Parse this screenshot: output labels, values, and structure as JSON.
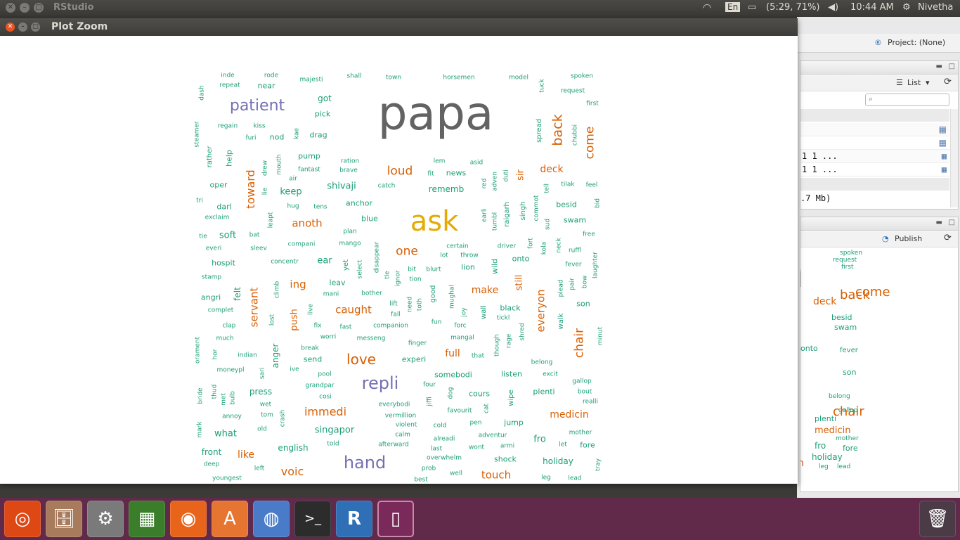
{
  "top_panel": {
    "app_title": "RStudio",
    "keyboard": "En",
    "battery": "(5:29, 71%)",
    "clock": "10:44 AM",
    "user": "Nivetha"
  },
  "plot_zoom": {
    "title": "Plot Zoom"
  },
  "rstudio": {
    "project": "Project: (None)",
    "list_label": "List",
    "env_rows": [
      "1 1 ...",
      "1 1 ..."
    ],
    "memory": ".7 Mb)",
    "publish_label": "Publish"
  },
  "wordcloud": [
    {
      "t": "papa",
      "c": "#636363"
    },
    {
      "t": "ask",
      "c": "#e6ab02"
    },
    {
      "t": "patient",
      "c": "#7570b3"
    },
    {
      "t": "repli",
      "c": "#7570b3"
    },
    {
      "t": "hand",
      "c": "#7570b3"
    },
    {
      "t": "love",
      "c": "#d95f02"
    },
    {
      "t": "loud",
      "c": "#d95f02"
    },
    {
      "t": "one",
      "c": "#d95f02"
    },
    {
      "t": "back",
      "c": "#d95f02"
    },
    {
      "t": "come",
      "c": "#d95f02"
    },
    {
      "t": "toward",
      "c": "#d95f02"
    },
    {
      "t": "chair",
      "c": "#d95f02"
    },
    {
      "t": "everyon",
      "c": "#d95f02"
    },
    {
      "t": "servant",
      "c": "#d95f02"
    },
    {
      "t": "anoth",
      "c": "#d95f02"
    },
    {
      "t": "immedi",
      "c": "#d95f02"
    },
    {
      "t": "medicin",
      "c": "#d95f02"
    },
    {
      "t": "caught",
      "c": "#d95f02"
    },
    {
      "t": "make",
      "c": "#d95f02"
    },
    {
      "t": "deck",
      "c": "#d95f02"
    },
    {
      "t": "touch",
      "c": "#d95f02"
    },
    {
      "t": "voic",
      "c": "#d95f02"
    },
    {
      "t": "ing",
      "c": "#d95f02"
    },
    {
      "t": "full",
      "c": "#d95f02"
    },
    {
      "t": "like",
      "c": "#d95f02"
    },
    {
      "t": "push",
      "c": "#d95f02"
    },
    {
      "t": "sir",
      "c": "#d95f02"
    },
    {
      "t": "still",
      "c": "#d95f02"
    },
    {
      "t": "singapor",
      "c": "#1b9e77"
    },
    {
      "t": "shivaji",
      "c": "#1b9e77"
    },
    {
      "t": "keep",
      "c": "#1b9e77"
    },
    {
      "t": "rememb",
      "c": "#1b9e77"
    },
    {
      "t": "anger",
      "c": "#1b9e77"
    },
    {
      "t": "felt",
      "c": "#1b9e77"
    },
    {
      "t": "holiday",
      "c": "#1b9e77"
    },
    {
      "t": "english",
      "c": "#1b9e77"
    },
    {
      "t": "press",
      "c": "#1b9e77"
    },
    {
      "t": "ear",
      "c": "#1b9e77"
    },
    {
      "t": "swam",
      "c": "#1b9e77"
    },
    {
      "t": "besid",
      "c": "#1b9e77"
    },
    {
      "t": "soft",
      "c": "#1b9e77"
    },
    {
      "t": "angri",
      "c": "#1b9e77"
    },
    {
      "t": "what",
      "c": "#1b9e77"
    },
    {
      "t": "front",
      "c": "#1b9e77"
    },
    {
      "t": "fro",
      "c": "#1b9e77"
    },
    {
      "t": "fore",
      "c": "#1b9e77"
    },
    {
      "t": "shock",
      "c": "#1b9e77"
    },
    {
      "t": "plenti",
      "c": "#1b9e77"
    },
    {
      "t": "cours",
      "c": "#1b9e77"
    },
    {
      "t": "somebodi",
      "c": "#1b9e77"
    },
    {
      "t": "listen",
      "c": "#1b9e77"
    },
    {
      "t": "black",
      "c": "#1b9e77"
    },
    {
      "t": "son",
      "c": "#1b9e77"
    },
    {
      "t": "onto",
      "c": "#1b9e77"
    },
    {
      "t": "lion",
      "c": "#1b9e77"
    },
    {
      "t": "leav",
      "c": "#1b9e77"
    },
    {
      "t": "send",
      "c": "#1b9e77"
    },
    {
      "t": "experi",
      "c": "#1b9e77"
    },
    {
      "t": "jump",
      "c": "#1b9e77"
    },
    {
      "t": "help",
      "c": "#1b9e77"
    },
    {
      "t": "rather",
      "c": "#1b9e77"
    },
    {
      "t": "oper",
      "c": "#1b9e77"
    },
    {
      "t": "darl",
      "c": "#1b9e77"
    },
    {
      "t": "hospit",
      "c": "#1b9e77"
    },
    {
      "t": "got",
      "c": "#1b9e77"
    },
    {
      "t": "pick",
      "c": "#1b9e77"
    },
    {
      "t": "drag",
      "c": "#1b9e77"
    },
    {
      "t": "nod",
      "c": "#1b9e77"
    },
    {
      "t": "near",
      "c": "#1b9e77"
    },
    {
      "t": "pump",
      "c": "#1b9e77"
    },
    {
      "t": "news",
      "c": "#1b9e77"
    },
    {
      "t": "anchor",
      "c": "#1b9e77"
    },
    {
      "t": "blue",
      "c": "#1b9e77"
    },
    {
      "t": "wild",
      "c": "#1b9e77"
    },
    {
      "t": "walk",
      "c": "#1b9e77"
    },
    {
      "t": "wall",
      "c": "#1b9e77"
    },
    {
      "t": "good",
      "c": "#1b9e77"
    },
    {
      "t": "wipe",
      "c": "#1b9e77"
    },
    {
      "t": "singh",
      "c": "#1b9e77"
    },
    {
      "t": "raigarh",
      "c": "#1b9e77"
    },
    {
      "t": "spread",
      "c": "#1b9e77"
    },
    {
      "t": "yet",
      "c": "#1b9e77"
    },
    {
      "t": "inde",
      "c": "#1b9e77"
    },
    {
      "t": "rode",
      "c": "#1b9e77"
    },
    {
      "t": "majesti",
      "c": "#1b9e77"
    },
    {
      "t": "shall",
      "c": "#1b9e77"
    },
    {
      "t": "town",
      "c": "#1b9e77"
    },
    {
      "t": "horsemen",
      "c": "#1b9e77"
    },
    {
      "t": "model",
      "c": "#1b9e77"
    },
    {
      "t": "spoken",
      "c": "#1b9e77"
    },
    {
      "t": "request",
      "c": "#1b9e77"
    },
    {
      "t": "first",
      "c": "#1b9e77"
    },
    {
      "t": "tuck",
      "c": "#1b9e77"
    },
    {
      "t": "chubbi",
      "c": "#1b9e77"
    },
    {
      "t": "repeat",
      "c": "#1b9e77"
    },
    {
      "t": "dash",
      "c": "#1b9e77"
    },
    {
      "t": "regain",
      "c": "#1b9e77"
    },
    {
      "t": "kiss",
      "c": "#1b9e77"
    },
    {
      "t": "furi",
      "c": "#1b9e77"
    },
    {
      "t": "kae",
      "c": "#1b9e77"
    },
    {
      "t": "steamer",
      "c": "#1b9e77"
    },
    {
      "t": "ration",
      "c": "#1b9e77"
    },
    {
      "t": "brave",
      "c": "#1b9e77"
    },
    {
      "t": "fantast",
      "c": "#1b9e77"
    },
    {
      "t": "drew",
      "c": "#1b9e77"
    },
    {
      "t": "mouth",
      "c": "#1b9e77"
    },
    {
      "t": "air",
      "c": "#1b9e77"
    },
    {
      "t": "lem",
      "c": "#1b9e77"
    },
    {
      "t": "asid",
      "c": "#1b9e77"
    },
    {
      "t": "fit",
      "c": "#1b9e77"
    },
    {
      "t": "duti",
      "c": "#1b9e77"
    },
    {
      "t": "adven",
      "c": "#1b9e77"
    },
    {
      "t": "red",
      "c": "#1b9e77"
    },
    {
      "t": "catch",
      "c": "#1b9e77"
    },
    {
      "t": "tilak",
      "c": "#1b9e77"
    },
    {
      "t": "feel",
      "c": "#1b9e77"
    },
    {
      "t": "tell",
      "c": "#1b9e77"
    },
    {
      "t": "tri",
      "c": "#1b9e77"
    },
    {
      "t": "lie",
      "c": "#1b9e77"
    },
    {
      "t": "hug",
      "c": "#1b9e77"
    },
    {
      "t": "tens",
      "c": "#1b9e77"
    },
    {
      "t": "exclaim",
      "c": "#1b9e77"
    },
    {
      "t": "leapt",
      "c": "#1b9e77"
    },
    {
      "t": "plan",
      "c": "#1b9e77"
    },
    {
      "t": "earli",
      "c": "#1b9e77"
    },
    {
      "t": "tumbl",
      "c": "#1b9e77"
    },
    {
      "t": "commot",
      "c": "#1b9e77"
    },
    {
      "t": "sud",
      "c": "#1b9e77"
    },
    {
      "t": "bid",
      "c": "#1b9e77"
    },
    {
      "t": "free",
      "c": "#1b9e77"
    },
    {
      "t": "tie",
      "c": "#1b9e77"
    },
    {
      "t": "bat",
      "c": "#1b9e77"
    },
    {
      "t": "everi",
      "c": "#1b9e77"
    },
    {
      "t": "sleev",
      "c": "#1b9e77"
    },
    {
      "t": "compani",
      "c": "#1b9e77"
    },
    {
      "t": "mango",
      "c": "#1b9e77"
    },
    {
      "t": "certain",
      "c": "#1b9e77"
    },
    {
      "t": "driver",
      "c": "#1b9e77"
    },
    {
      "t": "fort",
      "c": "#1b9e77"
    },
    {
      "t": "kola",
      "c": "#1b9e77"
    },
    {
      "t": "neck",
      "c": "#1b9e77"
    },
    {
      "t": "ruffl",
      "c": "#1b9e77"
    },
    {
      "t": "laughter",
      "c": "#1b9e77"
    },
    {
      "t": "concentr",
      "c": "#1b9e77"
    },
    {
      "t": "disappear",
      "c": "#1b9e77"
    },
    {
      "t": "lot",
      "c": "#1b9e77"
    },
    {
      "t": "throw",
      "c": "#1b9e77"
    },
    {
      "t": "fever",
      "c": "#1b9e77"
    },
    {
      "t": "stamp",
      "c": "#1b9e77"
    },
    {
      "t": "select",
      "c": "#1b9e77"
    },
    {
      "t": "tle",
      "c": "#1b9e77"
    },
    {
      "t": "bit",
      "c": "#1b9e77"
    },
    {
      "t": "blurt",
      "c": "#1b9e77"
    },
    {
      "t": "ignor",
      "c": "#1b9e77"
    },
    {
      "t": "tion",
      "c": "#1b9e77"
    },
    {
      "t": "climb",
      "c": "#1b9e77"
    },
    {
      "t": "mani",
      "c": "#1b9e77"
    },
    {
      "t": "bother",
      "c": "#1b9e77"
    },
    {
      "t": "mughal",
      "c": "#1b9e77"
    },
    {
      "t": "plead",
      "c": "#1b9e77"
    },
    {
      "t": "pair",
      "c": "#1b9e77"
    },
    {
      "t": "bow",
      "c": "#1b9e77"
    },
    {
      "t": "complet",
      "c": "#1b9e77"
    },
    {
      "t": "live",
      "c": "#1b9e77"
    },
    {
      "t": "need",
      "c": "#1b9e77"
    },
    {
      "t": "lift",
      "c": "#1b9e77"
    },
    {
      "t": "fall",
      "c": "#1b9e77"
    },
    {
      "t": "toth",
      "c": "#1b9e77"
    },
    {
      "t": "joy",
      "c": "#1b9e77"
    },
    {
      "t": "tickl",
      "c": "#1b9e77"
    },
    {
      "t": "clap",
      "c": "#1b9e77"
    },
    {
      "t": "lost",
      "c": "#1b9e77"
    },
    {
      "t": "fix",
      "c": "#1b9e77"
    },
    {
      "t": "fast",
      "c": "#1b9e77"
    },
    {
      "t": "companion",
      "c": "#1b9e77"
    },
    {
      "t": "fun",
      "c": "#1b9e77"
    },
    {
      "t": "forc",
      "c": "#1b9e77"
    },
    {
      "t": "shred",
      "c": "#1b9e77"
    },
    {
      "t": "much",
      "c": "#1b9e77"
    },
    {
      "t": "worri",
      "c": "#1b9e77"
    },
    {
      "t": "messeng",
      "c": "#1b9e77"
    },
    {
      "t": "mangal",
      "c": "#1b9e77"
    },
    {
      "t": "rage",
      "c": "#1b9e77"
    },
    {
      "t": "minut",
      "c": "#1b9e77"
    },
    {
      "t": "orament",
      "c": "#1b9e77"
    },
    {
      "t": "hor",
      "c": "#1b9e77"
    },
    {
      "t": "break",
      "c": "#1b9e77"
    },
    {
      "t": "finger",
      "c": "#1b9e77"
    },
    {
      "t": "though",
      "c": "#1b9e77"
    },
    {
      "t": "indian",
      "c": "#1b9e77"
    },
    {
      "t": "that",
      "c": "#1b9e77"
    },
    {
      "t": "belong",
      "c": "#1b9e77"
    },
    {
      "t": "moneypl",
      "c": "#1b9e77"
    },
    {
      "t": "sari",
      "c": "#1b9e77"
    },
    {
      "t": "ive",
      "c": "#1b9e77"
    },
    {
      "t": "pool",
      "c": "#1b9e77"
    },
    {
      "t": "excit",
      "c": "#1b9e77"
    },
    {
      "t": "thud",
      "c": "#1b9e77"
    },
    {
      "t": "bride",
      "c": "#1b9e77"
    },
    {
      "t": "met",
      "c": "#1b9e77"
    },
    {
      "t": "bulb",
      "c": "#1b9e77"
    },
    {
      "t": "grandpar",
      "c": "#1b9e77"
    },
    {
      "t": "four",
      "c": "#1b9e77"
    },
    {
      "t": "gallop",
      "c": "#1b9e77"
    },
    {
      "t": "bout",
      "c": "#1b9e77"
    },
    {
      "t": "cosi",
      "c": "#1b9e77"
    },
    {
      "t": "jiffi",
      "c": "#1b9e77"
    },
    {
      "t": "dog",
      "c": "#1b9e77"
    },
    {
      "t": "realli",
      "c": "#1b9e77"
    },
    {
      "t": "wet",
      "c": "#1b9e77"
    },
    {
      "t": "everybodi",
      "c": "#1b9e77"
    },
    {
      "t": "favourit",
      "c": "#1b9e77"
    },
    {
      "t": "cat",
      "c": "#1b9e77"
    },
    {
      "t": "annoy",
      "c": "#1b9e77"
    },
    {
      "t": "tom",
      "c": "#1b9e77"
    },
    {
      "t": "crash",
      "c": "#1b9e77"
    },
    {
      "t": "vermillion",
      "c": "#1b9e77"
    },
    {
      "t": "mark",
      "c": "#1b9e77"
    },
    {
      "t": "old",
      "c": "#1b9e77"
    },
    {
      "t": "violent",
      "c": "#1b9e77"
    },
    {
      "t": "cold",
      "c": "#1b9e77"
    },
    {
      "t": "pen",
      "c": "#1b9e77"
    },
    {
      "t": "mother",
      "c": "#1b9e77"
    },
    {
      "t": "calm",
      "c": "#1b9e77"
    },
    {
      "t": "adventur",
      "c": "#1b9e77"
    },
    {
      "t": "alreadi",
      "c": "#1b9e77"
    },
    {
      "t": "armi",
      "c": "#1b9e77"
    },
    {
      "t": "let",
      "c": "#1b9e77"
    },
    {
      "t": "told",
      "c": "#1b9e77"
    },
    {
      "t": "afterward",
      "c": "#1b9e77"
    },
    {
      "t": "last",
      "c": "#1b9e77"
    },
    {
      "t": "wont",
      "c": "#1b9e77"
    },
    {
      "t": "overwhelm",
      "c": "#1b9e77"
    },
    {
      "t": "deep",
      "c": "#1b9e77"
    },
    {
      "t": "left",
      "c": "#1b9e77"
    },
    {
      "t": "prob",
      "c": "#1b9e77"
    },
    {
      "t": "well",
      "c": "#1b9e77"
    },
    {
      "t": "tray",
      "c": "#1b9e77"
    },
    {
      "t": "youngest",
      "c": "#1b9e77"
    },
    {
      "t": "best",
      "c": "#1b9e77"
    },
    {
      "t": "leg",
      "c": "#1b9e77"
    },
    {
      "t": "lead",
      "c": "#1b9e77"
    }
  ]
}
